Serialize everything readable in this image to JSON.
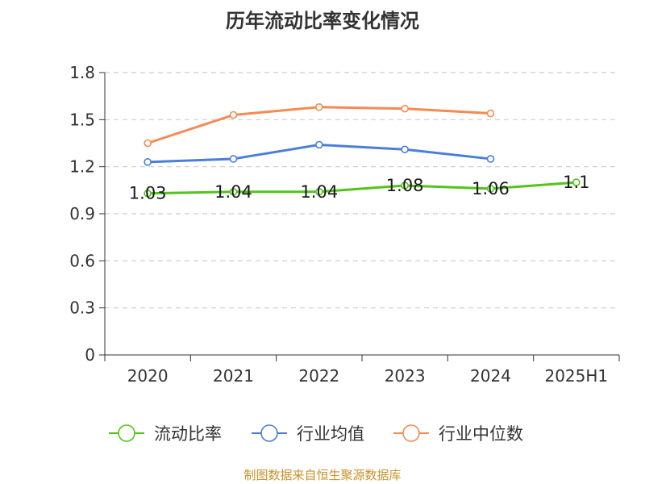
{
  "chart_data": {
    "type": "line",
    "title": "历年流动比率变化情况",
    "categories": [
      "2020",
      "2021",
      "2022",
      "2023",
      "2024",
      "2025H1"
    ],
    "ylim": [
      0,
      1.8
    ],
    "yticks": [
      0,
      0.3,
      0.6,
      0.9,
      1.2,
      1.5,
      1.8
    ],
    "ytick_labels": [
      "0",
      "0.3",
      "0.6",
      "0.9",
      "1.2",
      "1.5",
      "1.8"
    ],
    "grid": true,
    "legend_position": "bottom",
    "series": [
      {
        "name": "流动比率",
        "color": "#52c41a",
        "values": [
          1.03,
          1.04,
          1.04,
          1.08,
          1.06,
          1.1
        ],
        "labels": [
          "1.03",
          "1.04",
          "1.04",
          "1.08",
          "1.06",
          "1.1"
        ]
      },
      {
        "name": "行业均值",
        "color": "#4a7fd8",
        "values": [
          1.23,
          1.25,
          1.34,
          1.31,
          1.25,
          null
        ]
      },
      {
        "name": "行业中位数",
        "color": "#f58a52",
        "values": [
          1.35,
          1.53,
          1.58,
          1.57,
          1.54,
          null
        ]
      }
    ]
  },
  "source_note": "制图数据来自恒生聚源数据库"
}
